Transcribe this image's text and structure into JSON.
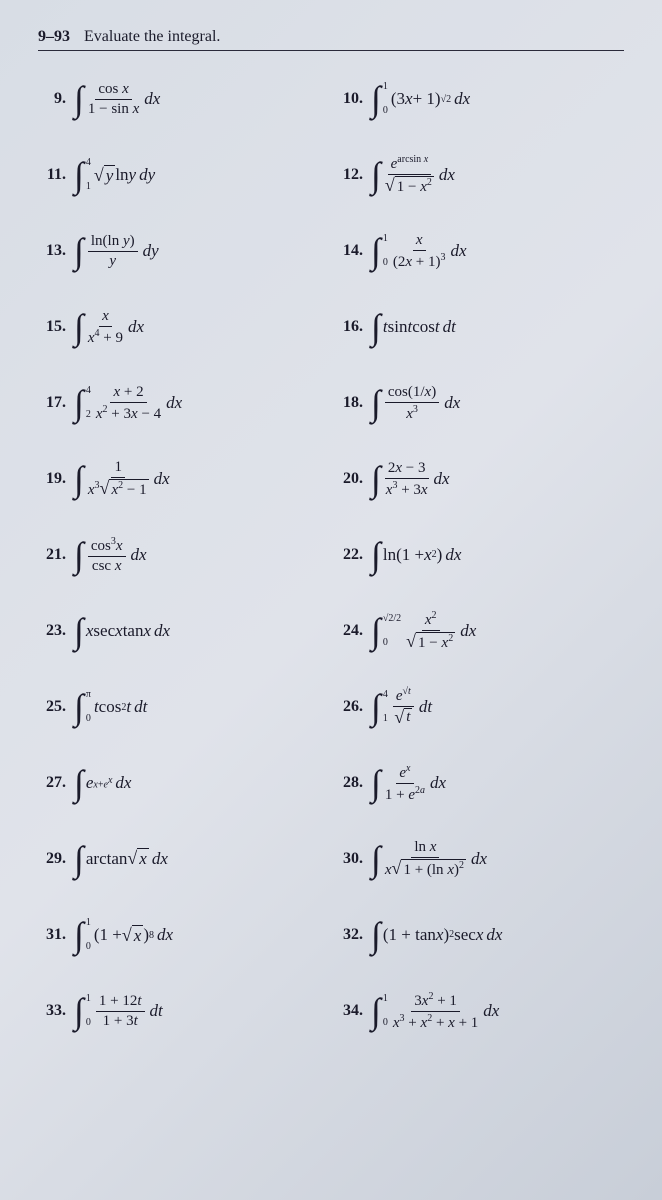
{
  "header": {
    "range": "9–93",
    "title": "Evaluate the integral."
  },
  "problems": {
    "p9": {
      "num": "9.",
      "html": "<span class='int'>∫</span><span class='frac'><span class='top'>cos <span class='it'>x</span></span><span class='bot'>1 − sin <span class='it'>x</span></span></span><span class='dx'>dx</span>"
    },
    "p10": {
      "num": "10.",
      "html": "<span class='int'>∫</span><span class='int-bounds'><span class='upper'>1</span><span>0</span></span>(3<span class='it'>x</span> + 1)<sup>√2</sup><span class='dx'>dx</span>"
    },
    "p11": {
      "num": "11.",
      "html": "<span class='int'>∫</span><span class='int-bounds'><span class='upper'>4</span><span>1</span></span><span class='sqrt'><span class='sqrt-sign'>√</span><span class='sqrt-body'><span class='it'>y</span></span></span> ln <span class='it'>y</span><span class='dx'>dy</span>"
    },
    "p12": {
      "num": "12.",
      "html": "<span class='int'>∫</span><span class='frac'><span class='top'><span class='it'>e</span><sup>arcsin <span class='it'>x</span></sup></span><span class='bot'><span class='sqrt'><span class='sqrt-sign'>√</span><span class='sqrt-body'>1 − <span class='it'>x</span><sup>2</sup></span></span></span></span><span class='dx'>dx</span>"
    },
    "p13": {
      "num": "13.",
      "html": "<span class='int'>∫</span><span class='frac'><span class='top'>ln(ln <span class='it'>y</span>)</span><span class='bot'><span class='it'>y</span></span></span><span class='dx'>dy</span>"
    },
    "p14": {
      "num": "14.",
      "html": "<span class='int'>∫</span><span class='int-bounds'><span class='upper'>1</span><span>0</span></span><span class='frac'><span class='top'><span class='it'>x</span></span><span class='bot'>(2<span class='it'>x</span> + 1)<sup>3</sup></span></span><span class='dx'>dx</span>"
    },
    "p15": {
      "num": "15.",
      "html": "<span class='int'>∫</span><span class='frac'><span class='top'><span class='it'>x</span></span><span class='bot'><span class='it'>x</span><sup>4</sup> + 9</span></span><span class='dx'>dx</span>"
    },
    "p16": {
      "num": "16.",
      "html": "<span class='int'>∫</span><span class='it'>t</span> sin <span class='it'>t</span> cos <span class='it'>t</span><span class='dx'>dt</span>"
    },
    "p17": {
      "num": "17.",
      "html": "<span class='int'>∫</span><span class='int-bounds'><span class='upper'>4</span><span>2</span></span><span class='frac'><span class='top'><span class='it'>x</span> + 2</span><span class='bot'><span class='it'>x</span><sup>2</sup> + 3<span class='it'>x</span> − 4</span></span><span class='dx'>dx</span>"
    },
    "p18": {
      "num": "18.",
      "html": "<span class='int'>∫</span><span class='frac'><span class='top'>cos(1/<span class='it'>x</span>)</span><span class='bot'><span class='it'>x</span><sup>3</sup></span></span><span class='dx'>dx</span>"
    },
    "p19": {
      "num": "19.",
      "html": "<span class='int'>∫</span><span class='frac'><span class='top'>1</span><span class='bot'><span class='it'>x</span><sup>3</sup><span class='sqrt'><span class='sqrt-sign'>√</span><span class='sqrt-body'><span class='it'>x</span><sup>2</sup> − 1</span></span></span></span><span class='dx'>dx</span>"
    },
    "p20": {
      "num": "20.",
      "html": "<span class='int'>∫</span><span class='frac'><span class='top'>2<span class='it'>x</span> − 3</span><span class='bot'><span class='it'>x</span><sup>3</sup> + 3<span class='it'>x</span></span></span><span class='dx'>dx</span>"
    },
    "p21": {
      "num": "21.",
      "html": "<span class='int'>∫</span><span class='frac'><span class='top'>cos<sup>3</sup><span class='it'>x</span></span><span class='bot'>csc <span class='it'>x</span></span></span><span class='dx'>dx</span>"
    },
    "p22": {
      "num": "22.",
      "html": "<span class='int'>∫</span>ln(1 + <span class='it'>x</span><sup>2</sup>)<span class='dx'>dx</span>"
    },
    "p23": {
      "num": "23.",
      "html": "<span class='int'>∫</span><span class='it'>x</span> sec <span class='it'>x</span> tan <span class='it'>x</span><span class='dx'>dx</span>"
    },
    "p24": {
      "num": "24.",
      "html": "<span class='int'>∫</span><span class='int-bounds'><span class='upper'>√2/2</span><span>0</span></span><span class='frac'><span class='top'><span class='it'>x</span><sup>2</sup></span><span class='bot'><span class='sqrt'><span class='sqrt-sign'>√</span><span class='sqrt-body'>1 − <span class='it'>x</span><sup>2</sup></span></span></span></span><span class='dx'>dx</span>"
    },
    "p25": {
      "num": "25.",
      "html": "<span class='int'>∫</span><span class='int-bounds'><span class='upper'>π</span><span>0</span></span><span class='it'>t</span> cos<sup>2</sup><span class='it'>t</span><span class='dx'>dt</span>"
    },
    "p26": {
      "num": "26.",
      "html": "<span class='int'>∫</span><span class='int-bounds'><span class='upper'>4</span><span>1</span></span><span class='frac'><span class='top'><span class='it'>e</span><sup>√<span class='it'>t</span></sup></span><span class='bot'><span class='sqrt'><span class='sqrt-sign'>√</span><span class='sqrt-body'><span class='it'>t</span></span></span></span></span><span class='dx'>dt</span>"
    },
    "p27": {
      "num": "27.",
      "html": "<span class='int'>∫</span><span class='it'>e</span><sup><span class='it'>x</span>+<span class='it'>e</span><sup><span class='it'>x</span></sup></sup><span class='dx'>dx</span>"
    },
    "p28": {
      "num": "28.",
      "html": "<span class='int'>∫</span><span class='frac'><span class='top'><span class='it'>e</span><sup><span class='it'>x</span></sup></span><span class='bot'>1 + <span class='it'>e</span><sup>2<span class='it'>a</span></sup></span></span><span class='dx'>dx</span>"
    },
    "p29": {
      "num": "29.",
      "html": "<span class='int'>∫</span>arctan <span class='sqrt'><span class='sqrt-sign'>√</span><span class='sqrt-body'><span class='it'>x</span></span></span><span class='dx'>dx</span>"
    },
    "p30": {
      "num": "30.",
      "html": "<span class='int'>∫</span><span class='frac'><span class='top'>ln <span class='it'>x</span></span><span class='bot'><span class='it'>x</span><span class='sqrt'><span class='sqrt-sign'>√</span><span class='sqrt-body'>1 + (ln <span class='it'>x</span>)<sup>2</sup></span></span></span></span><span class='dx'>dx</span>"
    },
    "p31": {
      "num": "31.",
      "html": "<span class='int'>∫</span><span class='int-bounds'><span class='upper'>1</span><span>0</span></span>(1 + <span class='sqrt'><span class='sqrt-sign'>√</span><span class='sqrt-body'><span class='it'>x</span></span></span> )<sup>8</sup><span class='dx'>dx</span>"
    },
    "p32": {
      "num": "32.",
      "html": "<span class='int'>∫</span>(1 + tan <span class='it'>x</span>)<sup>2</sup> sec <span class='it'>x</span><span class='dx'>dx</span>"
    },
    "p33": {
      "num": "33.",
      "html": "<span class='int'>∫</span><span class='int-bounds'><span class='upper'>1</span><span>0</span></span><span class='frac'><span class='top'>1 + 12<span class='it'>t</span></span><span class='bot'>1 + 3<span class='it'>t</span></span></span><span class='dx'>dt</span>"
    },
    "p34": {
      "num": "34.",
      "html": "<span class='int'>∫</span><span class='int-bounds'><span class='upper'>1</span><span>0</span></span><span class='frac'><span class='top'>3<span class='it'>x</span><sup>2</sup> + 1</span><span class='bot'><span class='it'>x</span><sup>3</sup> + <span class='it'>x</span><sup>2</sup> + <span class='it'>x</span> + 1</span></span><span class='dx'>dx</span>"
    }
  },
  "order": [
    "p9",
    "p10",
    "p11",
    "p12",
    "p13",
    "p14",
    "p15",
    "p16",
    "p17",
    "p18",
    "p19",
    "p20",
    "p21",
    "p22",
    "p23",
    "p24",
    "p25",
    "p26",
    "p27",
    "p28",
    "p29",
    "p30",
    "p31",
    "p32",
    "p33",
    "p34"
  ]
}
